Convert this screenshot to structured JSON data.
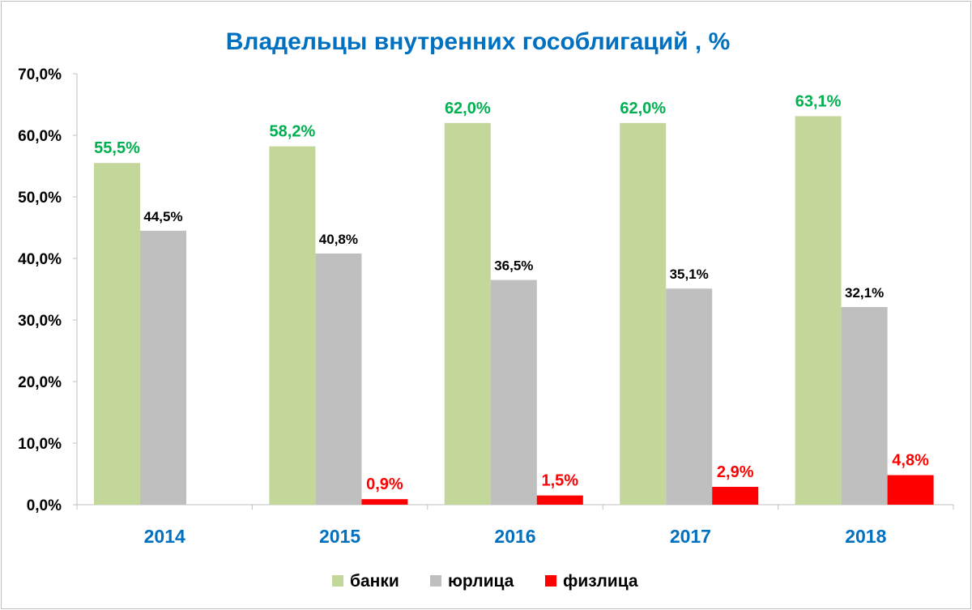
{
  "chart_data": {
    "type": "bar",
    "title": "Владельцы внутренних гособлигаций , %",
    "categories": [
      "2014",
      "2015",
      "2016",
      "2017",
      "2018"
    ],
    "series": [
      {
        "name": "банки",
        "values": [
          55.5,
          58.2,
          62.0,
          62.0,
          63.1
        ],
        "labels": [
          "55,5%",
          "58,2%",
          "62,0%",
          "62,0%",
          "63,1%"
        ],
        "color": "#c4d79b",
        "label_color": "#00b050"
      },
      {
        "name": "юрлица",
        "values": [
          44.5,
          40.8,
          36.5,
          35.1,
          32.1
        ],
        "labels": [
          "44,5%",
          "40,8%",
          "36,5%",
          "35,1%",
          "32,1%"
        ],
        "color": "#bfbfbf",
        "label_color": "#000000"
      },
      {
        "name": "физлица",
        "values": [
          null,
          0.9,
          1.5,
          2.9,
          4.8
        ],
        "labels": [
          "",
          "0,9%",
          "1,5%",
          "2,9%",
          "4,8%"
        ],
        "color": "#ff0000",
        "label_color": "#ff0000"
      }
    ],
    "ylim": [
      0,
      70
    ],
    "yticks": [
      0,
      10,
      20,
      30,
      40,
      50,
      60,
      70
    ],
    "ytick_labels": [
      "0,0%",
      "10,0%",
      "20,0%",
      "30,0%",
      "40,0%",
      "50,0%",
      "60,0%",
      "70,0%"
    ],
    "grid": false,
    "legend_position": "bottom",
    "title_color": "#0070c0",
    "xtick_color": "#0070c0"
  }
}
